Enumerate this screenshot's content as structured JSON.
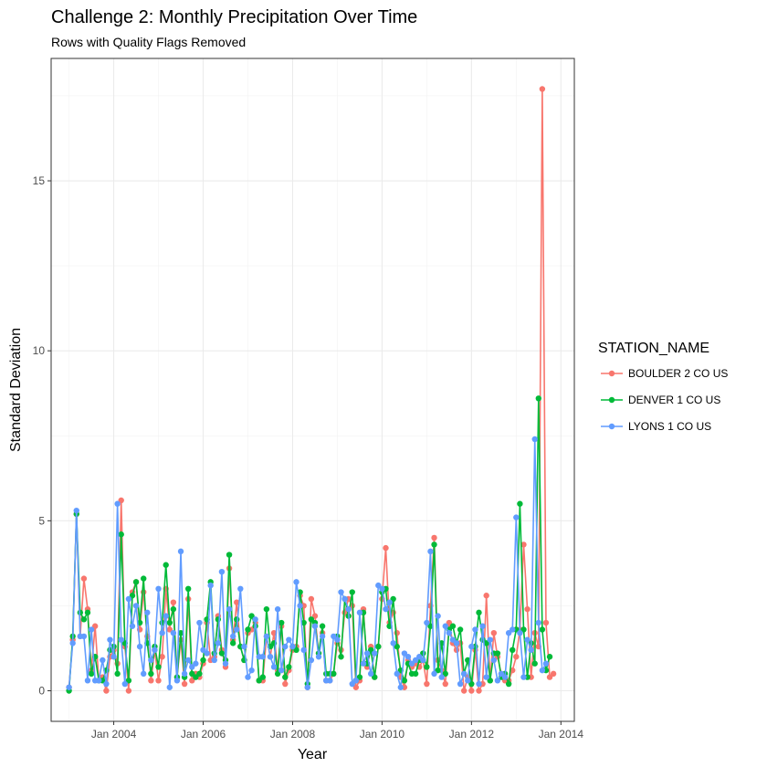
{
  "chart_data": {
    "type": "line",
    "title": "Challenge 2: Monthly Precipitation Over Time",
    "subtitle": "Rows with Quality Flags Removed",
    "xlabel": "Year",
    "ylabel": "Standard Deviation",
    "x_ticks": [
      "Jan 2004",
      "Jan 2006",
      "Jan 2008",
      "Jan 2010",
      "Jan 2012",
      "Jan 2014"
    ],
    "x_tick_values": [
      2004,
      2006,
      2008,
      2010,
      2012,
      2014
    ],
    "xlim": [
      2002.6,
      2014.3
    ],
    "y_ticks": [
      "0",
      "5",
      "10",
      "15"
    ],
    "y_tick_values": [
      0,
      5,
      10,
      15
    ],
    "ylim": [
      -0.9,
      18.6
    ],
    "grid": true,
    "legend": {
      "title": "STATION_NAME",
      "position": "right"
    },
    "x_start": 2003.0,
    "x_step": 0.08333,
    "series": [
      {
        "name": "BOULDER 2 CO US",
        "color": "#F8766D",
        "values": [
          0.1,
          1.5,
          5.2,
          1.6,
          3.3,
          2.4,
          0.6,
          1.9,
          0.3,
          0.4,
          0.0,
          1.0,
          1.2,
          0.8,
          5.6,
          1.3,
          0.0,
          2.9,
          3.2,
          1.8,
          2.9,
          1.6,
          0.3,
          1.2,
          0.3,
          1.0,
          3.0,
          1.8,
          2.6,
          0.4,
          1.5,
          0.2,
          2.7,
          0.3,
          0.5,
          0.4,
          0.8,
          2.0,
          0.9,
          1.0,
          2.2,
          1.2,
          0.7,
          3.6,
          1.5,
          2.6,
          1.3,
          0.9,
          1.7,
          1.8,
          2.0,
          0.3,
          0.3,
          1.6,
          1.0,
          1.7,
          0.6,
          1.9,
          0.2,
          0.6,
          1.2,
          1.3,
          2.8,
          2.5,
          0.1,
          2.7,
          2.2,
          1.1,
          1.7,
          0.3,
          0.3,
          0.5,
          1.4,
          1.2,
          2.3,
          2.7,
          2.5,
          0.1,
          0.3,
          2.4,
          0.7,
          1.3,
          0.4,
          1.3,
          2.7,
          4.2,
          2.0,
          2.3,
          1.7,
          0.4,
          0.1,
          0.9,
          0.7,
          0.8,
          0.7,
          0.9,
          0.2,
          2.5,
          4.5,
          0.9,
          0.6,
          0.2,
          2.0,
          1.4,
          1.2,
          1.4,
          0.0,
          0.4,
          0.0,
          1.2,
          0.0,
          0.2,
          2.8,
          0.3,
          1.7,
          1.0,
          0.5,
          0.3,
          0.3,
          0.6,
          1.0,
          1.8,
          4.3,
          2.4,
          0.4,
          1.7,
          1.3,
          17.7,
          2.0,
          0.4,
          0.5
        ]
      },
      {
        "name": "DENVER 1 CO US",
        "color": "#00BA38",
        "values": [
          0.0,
          1.6,
          5.2,
          2.3,
          2.1,
          2.3,
          0.5,
          1.0,
          0.3,
          0.3,
          0.6,
          1.2,
          1.3,
          0.5,
          4.6,
          1.4,
          0.3,
          2.8,
          3.2,
          2.0,
          3.3,
          1.4,
          0.5,
          1.3,
          0.7,
          2.0,
          3.7,
          2.0,
          2.4,
          0.4,
          1.7,
          0.4,
          3.0,
          0.5,
          0.4,
          0.5,
          0.9,
          2.1,
          3.2,
          1.1,
          2.1,
          1.1,
          0.9,
          4.0,
          1.4,
          2.1,
          1.3,
          0.9,
          1.8,
          2.2,
          1.9,
          0.3,
          0.4,
          2.4,
          1.3,
          1.4,
          0.5,
          2.0,
          0.4,
          0.7,
          1.3,
          1.2,
          2.9,
          2.0,
          0.2,
          2.1,
          2.0,
          1.1,
          1.9,
          0.5,
          0.5,
          0.5,
          1.6,
          1.0,
          2.7,
          2.2,
          2.9,
          0.3,
          0.4,
          2.3,
          0.8,
          1.2,
          0.4,
          1.3,
          2.9,
          3.0,
          1.9,
          2.7,
          1.3,
          0.6,
          0.3,
          0.8,
          0.5,
          0.5,
          0.9,
          1.1,
          0.7,
          1.9,
          4.3,
          0.6,
          1.4,
          0.5,
          1.8,
          1.9,
          1.4,
          1.8,
          0.5,
          0.9,
          0.2,
          1.3,
          2.3,
          1.5,
          1.4,
          0.3,
          1.1,
          1.1,
          0.4,
          0.5,
          0.2,
          1.2,
          1.8,
          5.5,
          1.8,
          0.4,
          1.4,
          0.8,
          8.6,
          1.8,
          0.6,
          1.0
        ]
      },
      {
        "name": "LYONS 1 CO US",
        "color": "#619CFF",
        "values": [
          0.1,
          1.4,
          5.3,
          1.6,
          1.6,
          0.3,
          1.8,
          0.3,
          0.3,
          0.9,
          0.2,
          1.5,
          1.0,
          5.5,
          1.5,
          0.2,
          2.7,
          1.9,
          2.5,
          1.3,
          0.5,
          2.3,
          0.9,
          1.2,
          3.0,
          1.7,
          2.2,
          0.1,
          1.7,
          0.3,
          4.1,
          0.5,
          0.9,
          0.7,
          0.8,
          2.0,
          1.2,
          1.1,
          3.1,
          0.9,
          1.4,
          3.5,
          0.8,
          2.4,
          1.6,
          1.8,
          3.0,
          1.3,
          0.4,
          0.6,
          2.1,
          1.0,
          1.0,
          1.6,
          1.0,
          0.7,
          2.4,
          0.6,
          1.3,
          1.5,
          1.3,
          3.2,
          2.5,
          1.2,
          0.1,
          0.9,
          1.9,
          1.0,
          1.6,
          0.3,
          0.3,
          1.6,
          1.5,
          2.9,
          2.7,
          2.4,
          0.2,
          0.3,
          2.3,
          0.8,
          1.1,
          0.5,
          1.1,
          3.1,
          3.0,
          2.4,
          2.6,
          1.4,
          0.5,
          0.1,
          1.1,
          1.0,
          0.8,
          0.9,
          1.0,
          0.9,
          2.0,
          4.1,
          0.5,
          2.2,
          0.4,
          1.9,
          1.7,
          1.5,
          1.4,
          0.2,
          0.5,
          0.3,
          1.3,
          1.8,
          0.2,
          1.9,
          0.4,
          1.5,
          0.9,
          0.3,
          0.5,
          0.4,
          1.7,
          1.8,
          5.1,
          1.7,
          0.4,
          1.5,
          1.2,
          7.4,
          2.0,
          0.6,
          0.8
        ]
      }
    ]
  }
}
